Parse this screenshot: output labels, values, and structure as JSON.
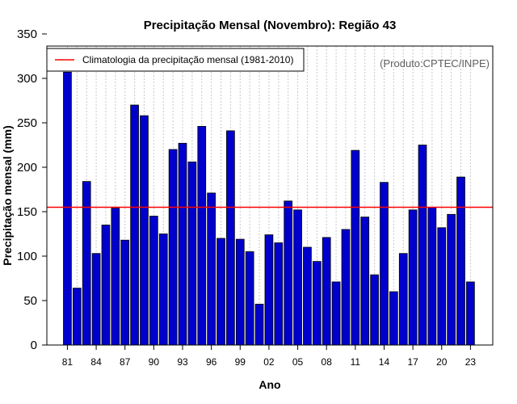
{
  "chart_data": {
    "type": "bar",
    "title": "Precipitação Mensal (Novembro): Região 43",
    "xlabel": "Ano",
    "ylabel": "Precipitação mensal (mm)",
    "credit": "(Produto:CPTEC/INPE)",
    "ylim": [
      0,
      350
    ],
    "yticks": [
      0,
      50,
      100,
      150,
      200,
      250,
      300,
      350
    ],
    "grid": "vertical-dotted",
    "legend_position": "top-left",
    "years": [
      1981,
      1982,
      1983,
      1984,
      1985,
      1986,
      1987,
      1988,
      1989,
      1990,
      1991,
      1992,
      1993,
      1994,
      1995,
      1996,
      1997,
      1998,
      1999,
      2000,
      2001,
      2002,
      2003,
      2004,
      2005,
      2006,
      2007,
      2008,
      2009,
      2010,
      2011,
      2012,
      2013,
      2014,
      2015,
      2016,
      2017,
      2018,
      2019,
      2020,
      2021,
      2022,
      2023
    ],
    "values": [
      307,
      64,
      184,
      103,
      135,
      154,
      118,
      270,
      258,
      145,
      125,
      220,
      227,
      206,
      246,
      171,
      120,
      241,
      119,
      105,
      46,
      124,
      115,
      162,
      152,
      110,
      94,
      121,
      71,
      130,
      219,
      144,
      79,
      183,
      60,
      103,
      152,
      225,
      155,
      132,
      147,
      189,
      71
    ],
    "xtick_labels": [
      {
        "year": 1981,
        "label": "81"
      },
      {
        "year": 1984,
        "label": "84"
      },
      {
        "year": 1987,
        "label": "87"
      },
      {
        "year": 1990,
        "label": "90"
      },
      {
        "year": 1993,
        "label": "93"
      },
      {
        "year": 1996,
        "label": "96"
      },
      {
        "year": 1999,
        "label": "99"
      },
      {
        "year": 2002,
        "label": "02"
      },
      {
        "year": 2005,
        "label": "05"
      },
      {
        "year": 2008,
        "label": "08"
      },
      {
        "year": 2011,
        "label": "11"
      },
      {
        "year": 2014,
        "label": "14"
      },
      {
        "year": 2017,
        "label": "17"
      },
      {
        "year": 2020,
        "label": "20"
      },
      {
        "year": 2023,
        "label": "23"
      }
    ],
    "climatology": {
      "label": "Climatologia da precipitação mensal (1981-2010)",
      "value": 155,
      "color": "#ff0000"
    },
    "bar_color": "#0000cc",
    "bar_edge_color": "#000000"
  }
}
